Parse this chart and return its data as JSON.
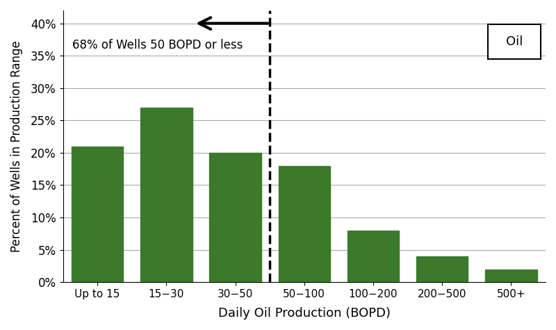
{
  "categories": [
    "Up to 15",
    "15−30",
    "30−50",
    "50−100",
    "100−200",
    "200−500",
    "500+"
  ],
  "values": [
    21,
    27,
    20,
    18,
    8,
    4,
    2
  ],
  "bar_color": "#3a7a2a",
  "bar_edgecolor": "#3a7a2a",
  "xlabel": "Daily Oil Production (BOPD)",
  "ylabel": "Percent of Wells in Production Range",
  "ylim": [
    0,
    42
  ],
  "yticks": [
    0,
    5,
    10,
    15,
    20,
    25,
    30,
    35,
    40
  ],
  "yticklabels": [
    "0%",
    "5%",
    "10%",
    "15%",
    "20%",
    "25%",
    "30%",
    "35%",
    "40%"
  ],
  "annotation_text": "68% of Wells 50 BOPD or less",
  "dashed_line_x": 2.5,
  "legend_label": "Oil",
  "background_color": "#ffffff",
  "grid_color": "#aaaaaa"
}
